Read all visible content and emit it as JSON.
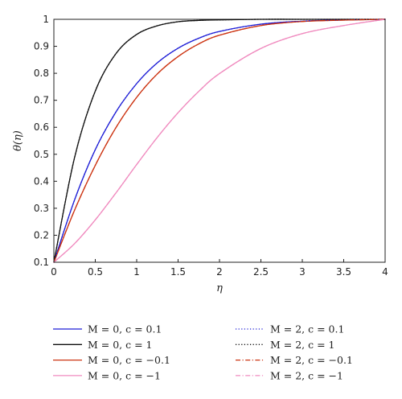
{
  "chart_data": {
    "type": "line",
    "xlabel": "η",
    "ylabel": "θ(η)",
    "xlim": [
      0,
      4
    ],
    "ylim": [
      0.1,
      1
    ],
    "xticks": [
      "0",
      "0.5",
      "1",
      "1.5",
      "2",
      "2.5",
      "3",
      "3.5",
      "4"
    ],
    "yticks": [
      "0.1",
      "0.2",
      "0.3",
      "0.4",
      "0.5",
      "0.6",
      "0.7",
      "0.8",
      "0.9",
      "1"
    ],
    "grid": false,
    "legend_position": "bottom",
    "x": [
      0,
      0.25,
      0.5,
      0.75,
      1,
      1.25,
      1.5,
      1.75,
      2,
      2.5,
      3,
      3.5,
      4
    ],
    "series": [
      {
        "name": "M = 0, c = 0.1",
        "color": "#1f1fd6",
        "dash": "solid",
        "values": [
          0.1,
          0.331,
          0.517,
          0.657,
          0.762,
          0.839,
          0.893,
          0.93,
          0.955,
          0.982,
          0.993,
          0.998,
          1.0
        ]
      },
      {
        "name": "M = 0, c = 1",
        "color": "#111111",
        "dash": "solid",
        "values": [
          0.1,
          0.488,
          0.734,
          0.873,
          0.944,
          0.976,
          0.991,
          0.996,
          0.998,
          1.0,
          1.0,
          1.0,
          1.0
        ]
      },
      {
        "name": "M = 0, c = −0.1",
        "color": "#cc3311",
        "dash": "solid",
        "values": [
          0.1,
          0.293,
          0.459,
          0.599,
          0.711,
          0.798,
          0.862,
          0.909,
          0.941,
          0.977,
          0.992,
          0.997,
          1.0
        ]
      },
      {
        "name": "M = 0, c = −1",
        "color": "#f08bbf",
        "dash": "solid",
        "values": [
          0.1,
          0.169,
          0.257,
          0.357,
          0.462,
          0.563,
          0.654,
          0.733,
          0.799,
          0.892,
          0.947,
          0.977,
          1.0
        ]
      },
      {
        "name": "M = 2, c = 0.1",
        "color": "#1f1fd6",
        "dash": "dotted",
        "values": [
          0.1,
          0.331,
          0.517,
          0.657,
          0.762,
          0.839,
          0.893,
          0.93,
          0.955,
          0.982,
          0.993,
          0.998,
          1.0
        ]
      },
      {
        "name": "M = 2, c = 1",
        "color": "#111111",
        "dash": "dotted",
        "values": [
          0.1,
          0.488,
          0.734,
          0.873,
          0.944,
          0.976,
          0.991,
          0.996,
          0.998,
          1.0,
          1.0,
          1.0,
          1.0
        ]
      },
      {
        "name": "M = 2, c = −0.1",
        "color": "#cc3311",
        "dash": "dashdot",
        "values": [
          0.1,
          0.293,
          0.459,
          0.599,
          0.711,
          0.798,
          0.862,
          0.909,
          0.941,
          0.977,
          0.992,
          0.997,
          1.0
        ]
      },
      {
        "name": "M = 2, c = −1",
        "color": "#f08bbf",
        "dash": "dashdot",
        "values": [
          0.1,
          0.169,
          0.257,
          0.357,
          0.462,
          0.563,
          0.654,
          0.733,
          0.799,
          0.892,
          0.947,
          0.977,
          1.0
        ]
      }
    ]
  }
}
